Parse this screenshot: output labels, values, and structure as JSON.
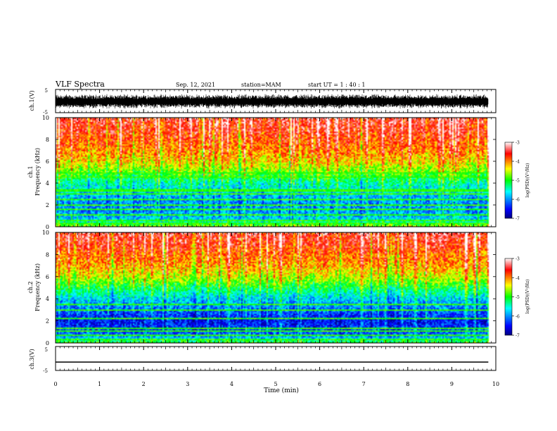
{
  "header": {
    "title": "VLF Spectra",
    "date": "Sep. 12, 2021",
    "station": "station=MAM",
    "start": "start UT =  1 : 40 : 1"
  },
  "chart_data": [
    {
      "type": "line",
      "name": "ch1-waveform",
      "ylabel": "ch.1(V)",
      "ylim": [
        -5,
        5
      ],
      "yticks": [
        "5",
        "-5"
      ],
      "xlim": [
        0,
        10
      ],
      "noise_amplitude_V": 2.6,
      "x_end_min": 9.83
    },
    {
      "type": "heatmap",
      "name": "ch1-spectrogram",
      "ylabel": "ch.1\nFrequency (kHz)",
      "ylim": [
        0,
        10
      ],
      "yticks": [
        "0",
        "2",
        "4",
        "6",
        "8",
        "10"
      ],
      "xlim": [
        0,
        10
      ],
      "x_end_min": 9.83,
      "colorbar": {
        "label": "log(PSD)(V²/Hz)",
        "range": [
          -7,
          -3
        ],
        "ticks": [
          "-3",
          "-4",
          "-5",
          "-6",
          "-7"
        ]
      },
      "profile_kHz": [
        0,
        0.5,
        1,
        2,
        3,
        4,
        5,
        6,
        7,
        8,
        9,
        10
      ],
      "profile_logpsd": [
        -4.7,
        -5.6,
        -5.9,
        -6.0,
        -5.8,
        -5.4,
        -4.8,
        -4.3,
        -4.0,
        -3.8,
        -3.6,
        -3.5
      ],
      "lines_kHz": [
        0.25,
        0.5,
        1.0,
        1.5,
        2.0,
        2.5,
        3.0,
        3.2,
        3.4,
        4.6,
        4.9
      ]
    },
    {
      "type": "heatmap",
      "name": "ch2-spectrogram",
      "ylabel": "ch.2\nFrequency (kHz)",
      "ylim": [
        0,
        10
      ],
      "yticks": [
        "0",
        "2",
        "4",
        "6",
        "8",
        "10"
      ],
      "xlim": [
        0,
        10
      ],
      "x_end_min": 9.83,
      "colorbar": {
        "label": "log(PSD)(V²/Hz)",
        "range": [
          -7,
          -3
        ],
        "ticks": [
          "-3",
          "-4",
          "-5",
          "-6",
          "-7"
        ]
      },
      "profile_kHz": [
        0,
        0.5,
        1,
        2,
        3,
        4,
        5,
        6,
        7,
        8,
        9,
        10
      ],
      "profile_logpsd": [
        -5.0,
        -5.9,
        -6.3,
        -6.5,
        -6.1,
        -5.7,
        -5.1,
        -4.5,
        -4.1,
        -3.9,
        -3.6,
        -3.5
      ],
      "lines_kHz": [
        0.2,
        0.6,
        1.0,
        1.3,
        2.2,
        2.9,
        3.4
      ]
    },
    {
      "type": "line",
      "name": "ch3-waveform",
      "ylabel": "ch.3(V)",
      "ylim": [
        -5,
        5
      ],
      "yticks": [
        "5",
        "-5"
      ],
      "xlim": [
        0,
        10
      ],
      "constant_V": -1.5,
      "x_end_min": 9.83
    }
  ],
  "xaxis": {
    "label": "Time (min)",
    "ticks": [
      "0",
      "1",
      "2",
      "3",
      "4",
      "5",
      "6",
      "7",
      "8",
      "9",
      "10"
    ]
  }
}
